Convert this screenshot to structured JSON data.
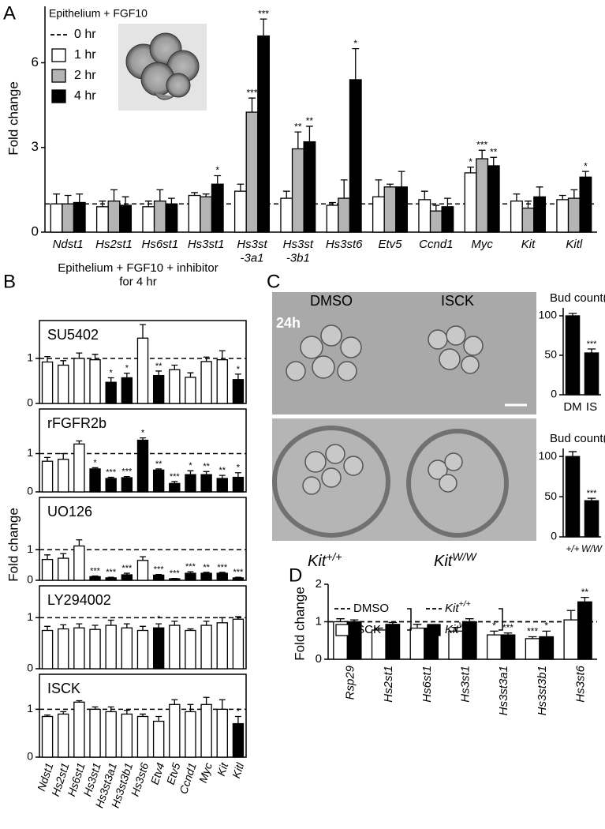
{
  "figure_text": {
    "letters": [
      "A",
      "B",
      "C",
      "D"
    ],
    "panel_B_title": "Epithelium + FGF10 + inhibitor\nfor 4 hr",
    "panel_B_ylabel": "Fold change",
    "panel_C_top": [
      "DMSO",
      "ISCK"
    ],
    "panel_C_time": "24h",
    "panel_C_bottom": [
      {
        "text": "Kit",
        "sup": "+/+"
      },
      {
        "text": "Kit",
        "sup": "W/W"
      }
    ]
  },
  "chart_data": [
    {
      "type": "bar",
      "title": "Epithelium + FGF10",
      "ylabel": "Fold change",
      "categories": [
        "Ndst1",
        "Hs2st1",
        "Hs6st1",
        "Hs3st1",
        "Hs3st\n-3a1",
        "Hs3st\n-3b1",
        "Hs3st6",
        "Etv5",
        "Ccnd1",
        "Myc",
        "Kit",
        "Kitl"
      ],
      "references": [
        {
          "name": "0 hr",
          "value": 1
        }
      ],
      "series": [
        {
          "name": "1 hr",
          "color": "#ffffff",
          "values": [
            1.0,
            0.9,
            0.9,
            1.3,
            1.45,
            1.2,
            0.95,
            1.25,
            1.15,
            2.1,
            1.1,
            1.15
          ],
          "errors": [
            0.35,
            0.2,
            0.2,
            0.1,
            0.25,
            0.25,
            0.1,
            0.6,
            0.3,
            0.2,
            0.25,
            0.15
          ],
          "stars": [
            null,
            null,
            null,
            null,
            null,
            null,
            null,
            null,
            null,
            "*",
            null,
            null
          ]
        },
        {
          "name": "2 hr",
          "color": "#b4b4b4",
          "values": [
            1.0,
            1.1,
            1.1,
            1.25,
            4.25,
            2.95,
            1.2,
            1.6,
            0.75,
            2.6,
            0.85,
            1.2
          ],
          "errors": [
            0.3,
            0.4,
            0.4,
            0.1,
            0.5,
            0.6,
            0.65,
            0.1,
            0.2,
            0.3,
            0.25,
            0.3
          ],
          "stars": [
            null,
            null,
            null,
            null,
            "***",
            "**",
            null,
            null,
            null,
            "***",
            null,
            null
          ]
        },
        {
          "name": "4 hr",
          "color": "#000000",
          "values": [
            1.05,
            0.95,
            1.0,
            1.7,
            6.95,
            3.2,
            5.4,
            1.6,
            0.9,
            2.35,
            1.25,
            1.95
          ],
          "errors": [
            0.3,
            0.3,
            0.2,
            0.3,
            0.6,
            0.55,
            1.1,
            0.55,
            0.3,
            0.3,
            0.35,
            0.2
          ],
          "stars": [
            null,
            null,
            null,
            "*",
            "***",
            "**",
            "*",
            null,
            null,
            "**",
            null,
            "*"
          ]
        }
      ],
      "ylim": [
        0,
        8
      ],
      "yticks": [
        0,
        3,
        6
      ]
    },
    {
      "type": "bar",
      "title": "SU5402",
      "reference": 1,
      "values": [
        0.92,
        0.85,
        1.0,
        0.97,
        0.47,
        0.57,
        1.45,
        0.62,
        0.75,
        0.58,
        0.93,
        0.97,
        0.53
      ],
      "errors": [
        0.12,
        0.1,
        0.12,
        0.12,
        0.1,
        0.1,
        0.3,
        0.1,
        0.1,
        0.1,
        0.1,
        0.2,
        0.12
      ],
      "colors": [
        "#fff",
        "#fff",
        "#fff",
        "#fff",
        "#000",
        "#000",
        "#fff",
        "#000",
        "#fff",
        "#fff",
        "#fff",
        "#fff",
        "#000"
      ],
      "stars": [
        null,
        null,
        null,
        null,
        "*",
        "*",
        null,
        "**",
        null,
        null,
        null,
        null,
        "*"
      ],
      "ylim": [
        0,
        1.7
      ],
      "yticks": [
        0,
        1
      ]
    },
    {
      "type": "bar",
      "title": "rFGFR2b",
      "reference": 1,
      "values": [
        0.8,
        0.85,
        1.25,
        0.6,
        0.35,
        0.37,
        1.35,
        0.57,
        0.22,
        0.45,
        0.45,
        0.35,
        0.38
      ],
      "errors": [
        0.1,
        0.15,
        0.08,
        0.03,
        0.03,
        0.03,
        0.06,
        0.03,
        0.05,
        0.1,
        0.08,
        0.08,
        0.12
      ],
      "colors": [
        "#fff",
        "#fff",
        "#fff",
        "#000",
        "#000",
        "#000",
        "#000",
        "#000",
        "#000",
        "#000",
        "#000",
        "#000",
        "#000"
      ],
      "stars": [
        null,
        null,
        null,
        "*",
        "***",
        "***",
        "*",
        "**",
        "***",
        "*",
        "**",
        "**",
        "*"
      ],
      "ylim": [
        0,
        2
      ],
      "yticks": [
        0,
        1
      ]
    },
    {
      "type": "bar",
      "title": "UO126",
      "reference": 1,
      "values": [
        0.68,
        0.72,
        1.12,
        0.12,
        0.08,
        0.18,
        0.65,
        0.17,
        0.05,
        0.23,
        0.23,
        0.23,
        0.08
      ],
      "errors": [
        0.15,
        0.15,
        0.2,
        0.02,
        0.02,
        0.05,
        0.12,
        0.02,
        0.01,
        0.05,
        0.03,
        0.03,
        0.02
      ],
      "colors": [
        "#fff",
        "#fff",
        "#fff",
        "#000",
        "#000",
        "#000",
        "#fff",
        "#000",
        "#000",
        "#000",
        "#000",
        "#000",
        "#000"
      ],
      "stars": [
        null,
        null,
        null,
        "***",
        "***",
        "***",
        null,
        "***",
        "***",
        "***",
        "**",
        "***",
        "***"
      ],
      "ylim": [
        0,
        2.5
      ],
      "yticks": [
        0,
        1
      ]
    },
    {
      "type": "bar",
      "title": "LY294002",
      "reference": 1,
      "values": [
        0.75,
        0.78,
        0.8,
        0.77,
        0.85,
        0.8,
        0.75,
        0.8,
        0.85,
        0.75,
        0.85,
        0.9,
        0.97
      ],
      "errors": [
        0.08,
        0.08,
        0.08,
        0.08,
        0.1,
        0.08,
        0.08,
        0.08,
        0.08,
        0.03,
        0.08,
        0.1,
        0.05
      ],
      "colors": [
        "#fff",
        "#fff",
        "#fff",
        "#fff",
        "#fff",
        "#fff",
        "#fff",
        "#000",
        "#fff",
        "#fff",
        "#fff",
        "#fff",
        "#fff"
      ],
      "stars": [
        null,
        null,
        null,
        null,
        null,
        null,
        null,
        "*",
        null,
        null,
        null,
        null,
        null
      ],
      "ylim": [
        0,
        1.5
      ],
      "yticks": [
        0,
        1
      ]
    },
    {
      "type": "bar",
      "title": "ISCK",
      "reference": 1,
      "categories": [
        "Ndst1",
        "Hs2st1",
        "Hs6st1",
        "Hs3st1",
        "Hs3st3a1",
        "Hs3st3b1",
        "Hs3st6",
        "Etv4",
        "Etv5",
        "Ccnd1",
        "Myc",
        "Kit",
        "Kitl"
      ],
      "values": [
        0.85,
        0.9,
        1.15,
        1.0,
        0.95,
        0.9,
        0.85,
        0.75,
        1.1,
        0.95,
        1.1,
        1.0,
        0.7
      ],
      "errors": [
        0.03,
        0.05,
        0.03,
        0.05,
        0.1,
        0.08,
        0.05,
        0.1,
        0.1,
        0.15,
        0.15,
        0.2,
        0.15
      ],
      "colors": [
        "#fff",
        "#fff",
        "#fff",
        "#fff",
        "#fff",
        "#fff",
        "#fff",
        "#fff",
        "#fff",
        "#fff",
        "#fff",
        "#fff",
        "#000"
      ],
      "stars": [
        null,
        null,
        null,
        null,
        null,
        null,
        null,
        null,
        null,
        null,
        null,
        null,
        "*"
      ],
      "ylim": [
        0,
        1.6
      ],
      "yticks": [
        0,
        1
      ]
    },
    {
      "type": "bar",
      "title": "Bud count(%)",
      "categories": [
        "DM",
        "IS"
      ],
      "values": [
        100,
        53
      ],
      "errors": [
        3,
        5
      ],
      "stars": [
        null,
        "***"
      ],
      "color": "#000",
      "ylim": [
        0,
        110
      ],
      "yticks": [
        0,
        50,
        100
      ]
    },
    {
      "type": "bar",
      "title": "Bud count(%)",
      "categories": [
        "+/+",
        "W/W"
      ],
      "values": [
        100,
        45
      ],
      "errors": [
        6,
        3
      ],
      "stars": [
        null,
        "***"
      ],
      "color": "#000",
      "ylim": [
        0,
        110
      ],
      "yticks": [
        0,
        50,
        100
      ]
    },
    {
      "type": "bar",
      "ylabel": "Fold change",
      "categories": [
        "Rsp29",
        "Hs2st1",
        "Hs6st1",
        "Hs3st1",
        "Hs3st3a1",
        "Hs3st3b1",
        "Hs3st6"
      ],
      "references": [
        {
          "name": "DMSO",
          "value": 1
        },
        {
          "name": {
            "text": "Kit",
            "sup": "+/+"
          },
          "value": 1
        }
      ],
      "series": [
        {
          "name": "ISCK",
          "color": "#ffffff",
          "values": [
            1.0,
            0.78,
            0.83,
            0.75,
            0.65,
            0.55,
            1.05
          ],
          "errors": [
            0.08,
            0.05,
            0.1,
            0.1,
            0.1,
            0.05,
            0.25
          ],
          "stars": [
            null,
            null,
            null,
            null,
            "*",
            "***",
            null
          ]
        },
        {
          "name": {
            "text": "Kit",
            "sup": "W/W"
          },
          "color": "#000000",
          "values": [
            1.0,
            0.93,
            0.83,
            1.0,
            0.65,
            0.6,
            1.53
          ],
          "errors": [
            0.05,
            0.05,
            0.05,
            0.08,
            0.05,
            0.15,
            0.12
          ],
          "stars": [
            null,
            null,
            null,
            null,
            "***",
            "*",
            "**"
          ]
        }
      ],
      "ylim": [
        0,
        2
      ],
      "yticks": [
        0,
        1,
        2
      ]
    }
  ]
}
